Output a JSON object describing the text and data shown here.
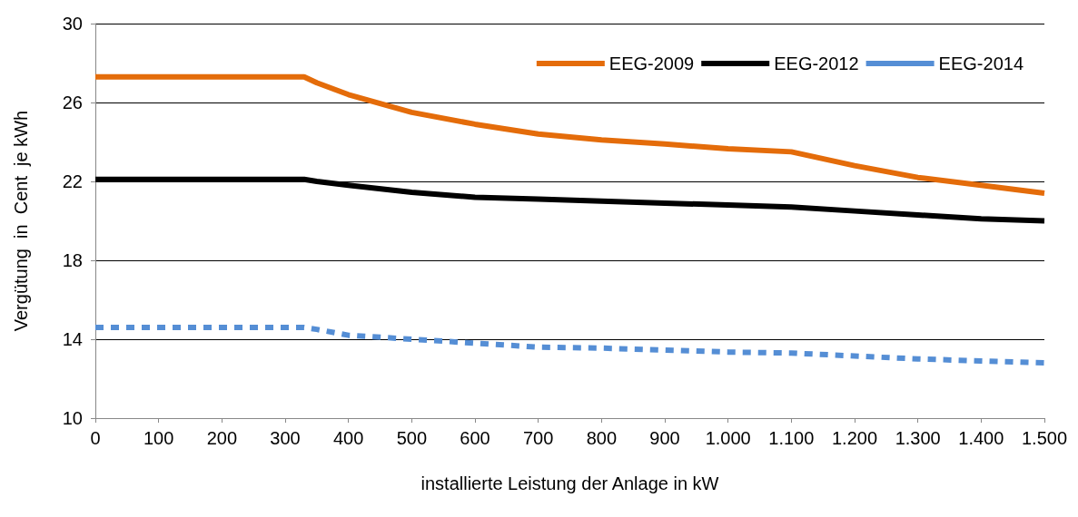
{
  "chart_data": {
    "type": "line",
    "xlabel": "installierte Leistung der Anlage in kW",
    "ylabel": "Vergütung  in  Cent  je kWh",
    "x": [
      0,
      100,
      200,
      330,
      350,
      400,
      500,
      600,
      700,
      800,
      900,
      1000,
      1100,
      1200,
      1300,
      1400,
      1500
    ],
    "series": [
      {
        "name": "EEG-2009",
        "color": "#e46c0a",
        "values": [
          27.3,
          27.3,
          27.3,
          27.3,
          27.0,
          26.4,
          25.5,
          24.9,
          24.4,
          24.1,
          23.9,
          23.65,
          23.5,
          22.8,
          22.2,
          21.8,
          21.4
        ]
      },
      {
        "name": "EEG-2012",
        "color": "#000000",
        "values": [
          22.1,
          22.1,
          22.1,
          22.1,
          22.0,
          21.8,
          21.45,
          21.2,
          21.1,
          21.0,
          20.9,
          20.8,
          20.7,
          20.5,
          20.3,
          20.1,
          20.0
        ]
      },
      {
        "name": "EEG-2014",
        "color": "#558ed5",
        "line_style": "dashed",
        "values": [
          14.6,
          14.6,
          14.6,
          14.6,
          14.5,
          14.2,
          14.0,
          13.8,
          13.6,
          13.55,
          13.45,
          13.35,
          13.3,
          13.15,
          13.0,
          12.9,
          12.8
        ]
      }
    ],
    "xlim": [
      0,
      1500
    ],
    "xticks": [
      0,
      100,
      200,
      300,
      400,
      500,
      600,
      700,
      800,
      900,
      {
        "value": 1000,
        "label": "1.000"
      },
      {
        "value": 1100,
        "label": "1.100"
      },
      {
        "value": 1200,
        "label": "1.200"
      },
      {
        "value": 1300,
        "label": "1.300"
      },
      {
        "value": 1400,
        "label": "1.400"
      },
      {
        "value": 1500,
        "label": "1.500"
      }
    ],
    "ylim": [
      10,
      30
    ],
    "yticks": [
      10,
      14,
      18,
      22,
      26,
      30
    ],
    "grid": "y",
    "legend": "top right",
    "marker": "none",
    "line_style": "solid"
  }
}
